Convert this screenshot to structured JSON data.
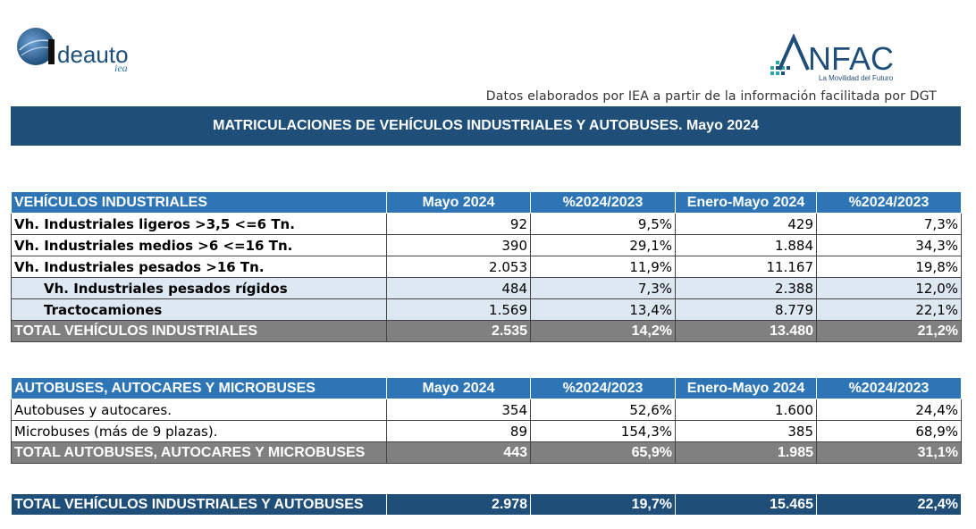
{
  "header": {
    "logo_left_text": "deauto",
    "logo_left_sub": "iea",
    "logo_right_text": "NFAC",
    "logo_right_sub": "La Movilidad del Futuro",
    "source_note": "Datos elaborados por IEA a partir de la información facilitada por DGT",
    "title": "MATRICULACIONES DE VEHÍCULOS INDUSTRIALES Y AUTOBUSES.  Mayo 2024"
  },
  "colors": {
    "banner": "#1f4e79",
    "header_row": "#2e75b6",
    "total_row": "#808080",
    "sub_row": "#dde8f3"
  },
  "industrial": {
    "headers": [
      "VEHÍCULOS INDUSTRIALES",
      "Mayo 2024",
      "%2024/2023",
      "Enero-Mayo 2024",
      "%2024/2023"
    ],
    "rows": [
      [
        "Vh. Industriales ligeros >3,5 <=6 Tn.",
        "92",
        "9,5%",
        "429",
        "7,3%"
      ],
      [
        "Vh. Industriales medios >6  <=16 Tn.",
        "390",
        "29,1%",
        "1.884",
        "34,3%"
      ],
      [
        "Vh. Industriales  pesados >16 Tn.",
        "2.053",
        "11,9%",
        "11.167",
        "19,8%"
      ],
      [
        "Vh. Industriales pesados rígidos",
        "484",
        "7,3%",
        "2.388",
        "12,0%"
      ],
      [
        "Tractocamiones",
        "1.569",
        "13,4%",
        "8.779",
        "22,1%"
      ]
    ],
    "total": [
      "TOTAL VEHÍCULOS INDUSTRIALES",
      "2.535",
      "14,2%",
      "13.480",
      "21,2%"
    ]
  },
  "buses": {
    "headers": [
      "AUTOBUSES, AUTOCARES Y MICROBUSES",
      "Mayo 2024",
      "%2024/2023",
      "Enero-Mayo 2024",
      "%2024/2023"
    ],
    "rows": [
      [
        "Autobuses y autocares.",
        "354",
        "52,6%",
        "1.600",
        "24,4%"
      ],
      [
        "Microbuses (más de 9 plazas).",
        "89",
        "154,3%",
        "385",
        "68,9%"
      ]
    ],
    "total": [
      "TOTAL AUTOBUSES, AUTOCARES Y MICROBUSES",
      "443",
      "65,9%",
      "1.985",
      "31,1%"
    ]
  },
  "grand_total": [
    "TOTAL VEHÍCULOS INDUSTRIALES Y AUTOBUSES",
    "2.978",
    "19,7%",
    "15.465",
    "22,4%"
  ]
}
